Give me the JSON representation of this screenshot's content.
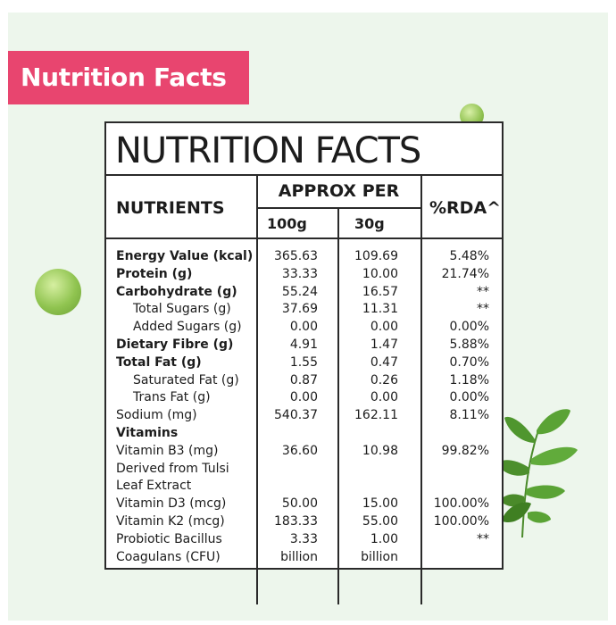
{
  "banner": {
    "label": "Nutrition Facts"
  },
  "table": {
    "title": "NUTRITION FACTS",
    "col_nutrients": "NUTRIENTS",
    "col_approx": "APPROX PER",
    "col_100g": "100g",
    "col_30g": "30g",
    "col_rda": "%RDA^",
    "rows": [
      {
        "name": "Energy Value (kcal)",
        "per100": "365.63",
        "per30": "109.69",
        "rda": "5.48%",
        "bold": true,
        "indent": false
      },
      {
        "name": "Protein (g)",
        "per100": "33.33",
        "per30": "10.00",
        "rda": "21.74%",
        "bold": true,
        "indent": false
      },
      {
        "name": "Carbohydrate (g)",
        "per100": "55.24",
        "per30": "16.57",
        "rda": "**",
        "bold": true,
        "indent": false
      },
      {
        "name": "Total Sugars (g)",
        "per100": "37.69",
        "per30": "11.31",
        "rda": "**",
        "bold": false,
        "indent": true
      },
      {
        "name": "Added Sugars (g)",
        "per100": "0.00",
        "per30": "0.00",
        "rda": "0.00%",
        "bold": false,
        "indent": true
      },
      {
        "name": "Dietary Fibre (g)",
        "per100": "4.91",
        "per30": "1.47",
        "rda": "5.88%",
        "bold": true,
        "indent": false
      },
      {
        "name": "Total Fat (g)",
        "per100": "1.55",
        "per30": "0.47",
        "rda": "0.70%",
        "bold": true,
        "indent": false
      },
      {
        "name": "Saturated Fat (g)",
        "per100": "0.87",
        "per30": "0.26",
        "rda": "1.18%",
        "bold": false,
        "indent": true
      },
      {
        "name": "Trans Fat (g)",
        "per100": "0.00",
        "per30": "0.00",
        "rda": "0.00%",
        "bold": false,
        "indent": true
      },
      {
        "name": "Sodium (mg)",
        "per100": "540.37",
        "per30": "162.11",
        "rda": "8.11%",
        "bold": false,
        "indent": false
      },
      {
        "name": "Vitamins",
        "per100": "",
        "per30": "",
        "rda": "",
        "bold": true,
        "indent": false
      },
      {
        "name": "Vitamin B3 (mg)",
        "per100": "36.60",
        "per30": "10.98",
        "rda": "99.82%",
        "bold": false,
        "indent": false
      },
      {
        "name": "Derived from Tulsi",
        "per100": "",
        "per30": "",
        "rda": "",
        "bold": false,
        "indent": false
      },
      {
        "name": "Leaf Extract",
        "per100": "",
        "per30": "",
        "rda": "",
        "bold": false,
        "indent": false
      },
      {
        "name": "Vitamin D3 (mcg)",
        "per100": "50.00",
        "per30": "15.00",
        "rda": "100.00%",
        "bold": false,
        "indent": false
      },
      {
        "name": "Vitamin K2 (mcg)",
        "per100": "183.33",
        "per30": "55.00",
        "rda": "100.00%",
        "bold": false,
        "indent": false
      },
      {
        "name": "Probiotic Bacillus",
        "per100": "3.33",
        "per30": "1.00",
        "rda": "**",
        "bold": false,
        "indent": false
      },
      {
        "name": "Coagulans (CFU)",
        "per100": "billion",
        "per30": "billion",
        "rda": "",
        "bold": false,
        "indent": false
      }
    ]
  },
  "colors": {
    "accent": "#e8456f",
    "background": "#edf6ec",
    "pea": "#8fc14f",
    "leaf": "#4f9a2f"
  }
}
